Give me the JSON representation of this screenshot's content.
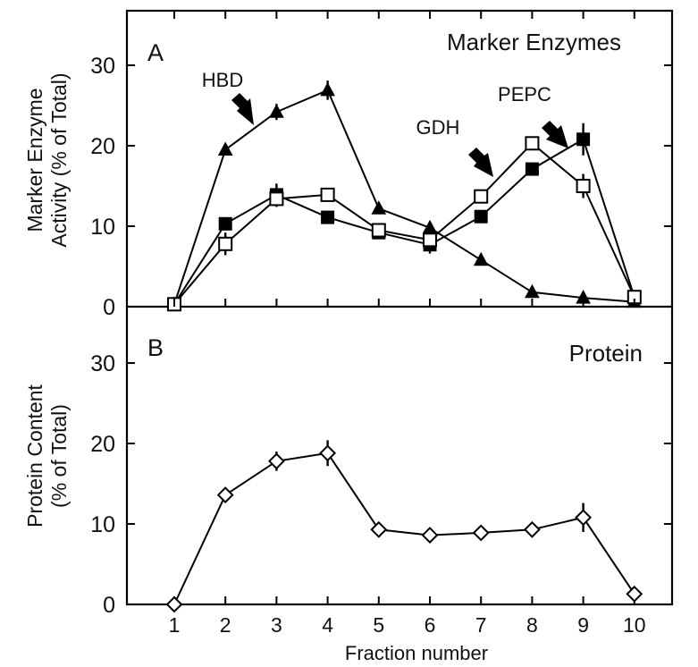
{
  "chart_data": [
    {
      "panel_label": "A",
      "type": "line",
      "title": "Marker Enzymes",
      "ylabel_lines": [
        "Marker Enzyme",
        "Activity (% of Total)"
      ],
      "ylim": [
        0,
        37
      ],
      "yticks": [
        0,
        10,
        20,
        30
      ],
      "x": [
        1,
        2,
        3,
        4,
        5,
        6,
        7,
        8,
        9,
        10
      ],
      "series": [
        {
          "name": "HBD",
          "marker": "filled-triangle",
          "values": [
            0.3,
            19.5,
            24.2,
            26.9,
            12.2,
            9.8,
            5.8,
            1.8,
            1.1,
            0.6
          ],
          "errors": [
            0.4,
            0.6,
            1.0,
            1.2,
            0.6,
            0.6,
            0.5,
            0.3,
            0.3,
            0.3
          ]
        },
        {
          "name": "PEPC",
          "marker": "filled-square",
          "values": [
            0.3,
            10.3,
            13.9,
            11.1,
            9.2,
            7.7,
            11.2,
            17.1,
            20.8,
            1.2
          ],
          "errors": [
            0.4,
            0.8,
            1.4,
            0.6,
            0.5,
            1.1,
            0.6,
            0.7,
            2.0,
            0.4
          ]
        },
        {
          "name": "GDH",
          "marker": "open-square",
          "values": [
            0.3,
            7.8,
            13.4,
            13.9,
            9.5,
            8.3,
            13.7,
            20.3,
            15.0,
            1.2
          ],
          "errors": [
            0.4,
            1.4,
            1.0,
            0.8,
            0.6,
            0.7,
            0.8,
            0.8,
            1.5,
            0.4
          ]
        }
      ],
      "annotations": [
        {
          "text": "HBD",
          "points_to_series": "HBD"
        },
        {
          "text": "GDH",
          "points_to_series": "GDH"
        },
        {
          "text": "PEPC",
          "points_to_series": "PEPC"
        }
      ]
    },
    {
      "panel_label": "B",
      "type": "line",
      "title": "Protein",
      "ylabel_lines": [
        "Protein Content",
        "(% of Total)"
      ],
      "ylim": [
        0,
        37
      ],
      "yticks": [
        0,
        10,
        20,
        30
      ],
      "xlabel": "Fraction number",
      "x": [
        1,
        2,
        3,
        4,
        5,
        6,
        7,
        8,
        9,
        10
      ],
      "series": [
        {
          "marker": "open-diamond",
          "values": [
            0,
            13.6,
            17.8,
            18.8,
            9.3,
            8.6,
            8.9,
            9.3,
            10.8,
            1.3
          ],
          "errors": [
            0,
            0.9,
            1.2,
            1.6,
            0.6,
            0.7,
            0.7,
            0.8,
            1.8,
            0.3
          ]
        }
      ]
    }
  ]
}
